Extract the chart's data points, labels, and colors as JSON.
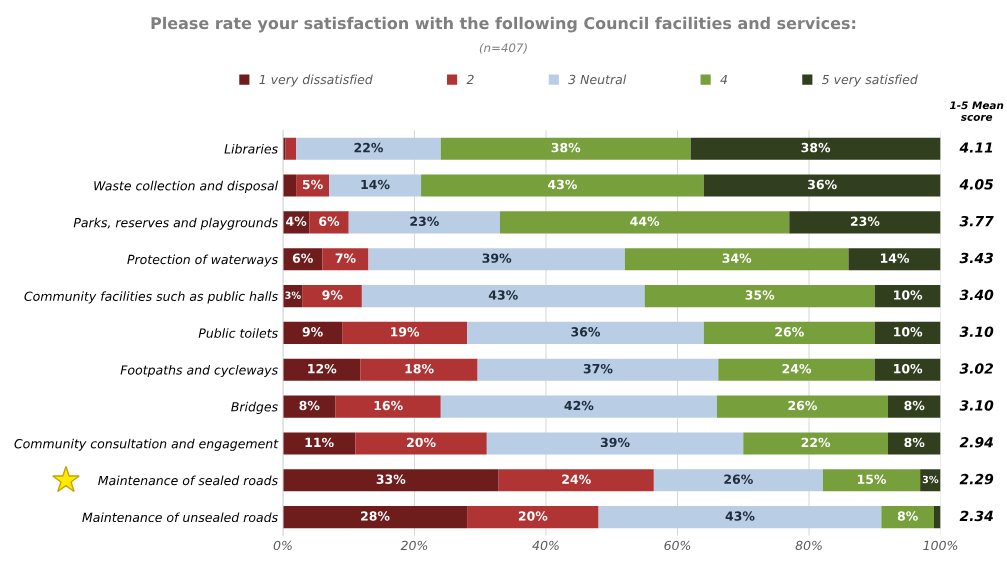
{
  "chart_data": {
    "type": "bar",
    "orientation": "horizontal",
    "stacked": true,
    "title": "Please rate your satisfaction with the following Council facilities and services:",
    "subtitle": "(n=407)",
    "categories": [
      "Libraries",
      "Waste collection and disposal",
      "Parks, reserves and playgrounds",
      "Protection of waterways",
      "Community facilities such as public halls",
      "Public toilets",
      "Footpaths and cycleways",
      "Bridges",
      "Community consultation and engagement",
      "Maintenance of sealed roads",
      "Maintenance of unsealed roads"
    ],
    "series": [
      {
        "name": "1 very dissatisfied",
        "color": "#6e1c1c",
        "values": [
          0.4,
          2,
          4,
          6,
          3,
          9,
          11.8,
          8,
          11,
          32.8,
          28
        ],
        "value_labels": [
          null,
          null,
          "4%",
          "6%",
          "3%",
          "9%",
          "12%",
          "8%",
          "11%",
          "33%",
          "28%"
        ]
      },
      {
        "name": "2",
        "color": "#b03434",
        "values": [
          1.6,
          5,
          6,
          7,
          9,
          19,
          17.8,
          16,
          20,
          23.6,
          20
        ],
        "value_labels": [
          null,
          "5%",
          "6%",
          "7%",
          "9%",
          "19%",
          "18%",
          "16%",
          "20%",
          "24%",
          "20%"
        ]
      },
      {
        "name": "3 Neutral",
        "color": "#b9cde5",
        "values": [
          22,
          14,
          23,
          39,
          43,
          36,
          36.6,
          42,
          39,
          25.7,
          43
        ],
        "value_labels": [
          "22%",
          "14%",
          "23%",
          "39%",
          "43%",
          "36%",
          "37%",
          "42%",
          "39%",
          "26%",
          "43%"
        ]
      },
      {
        "name": "4",
        "color": "#77a03c",
        "values": [
          38,
          43,
          44,
          34,
          35,
          26,
          23.8,
          26,
          22,
          14.8,
          8
        ],
        "value_labels": [
          "38%",
          "43%",
          "44%",
          "34%",
          "35%",
          "26%",
          "24%",
          "26%",
          "22%",
          "15%",
          "8%"
        ]
      },
      {
        "name": "5 very satisfied",
        "color": "#323f1e",
        "values": [
          38,
          36,
          23,
          14,
          10,
          10,
          10,
          8,
          8,
          3.1,
          1
        ],
        "value_labels": [
          "38%",
          "36%",
          "23%",
          "14%",
          "10%",
          "10%",
          "10%",
          "8%",
          "8%",
          "3%",
          null
        ]
      }
    ],
    "xlim": [
      0,
      100
    ],
    "xticks": [
      {
        "value": 0,
        "label": "0%"
      },
      {
        "value": 20,
        "label": "20%"
      },
      {
        "value": 40,
        "label": "40%"
      },
      {
        "value": 60,
        "label": "60%"
      },
      {
        "value": 80,
        "label": "80%"
      },
      {
        "value": 100,
        "label": "100%"
      }
    ],
    "grid": "x",
    "legend": "top",
    "annotations": [
      "1-5 Mean score",
      "4.11",
      "4.05",
      "3.77",
      "3.43",
      "3.40",
      "3.10",
      "3.02",
      "3.10",
      "2.94",
      "2.29",
      "2.34"
    ]
  }
}
